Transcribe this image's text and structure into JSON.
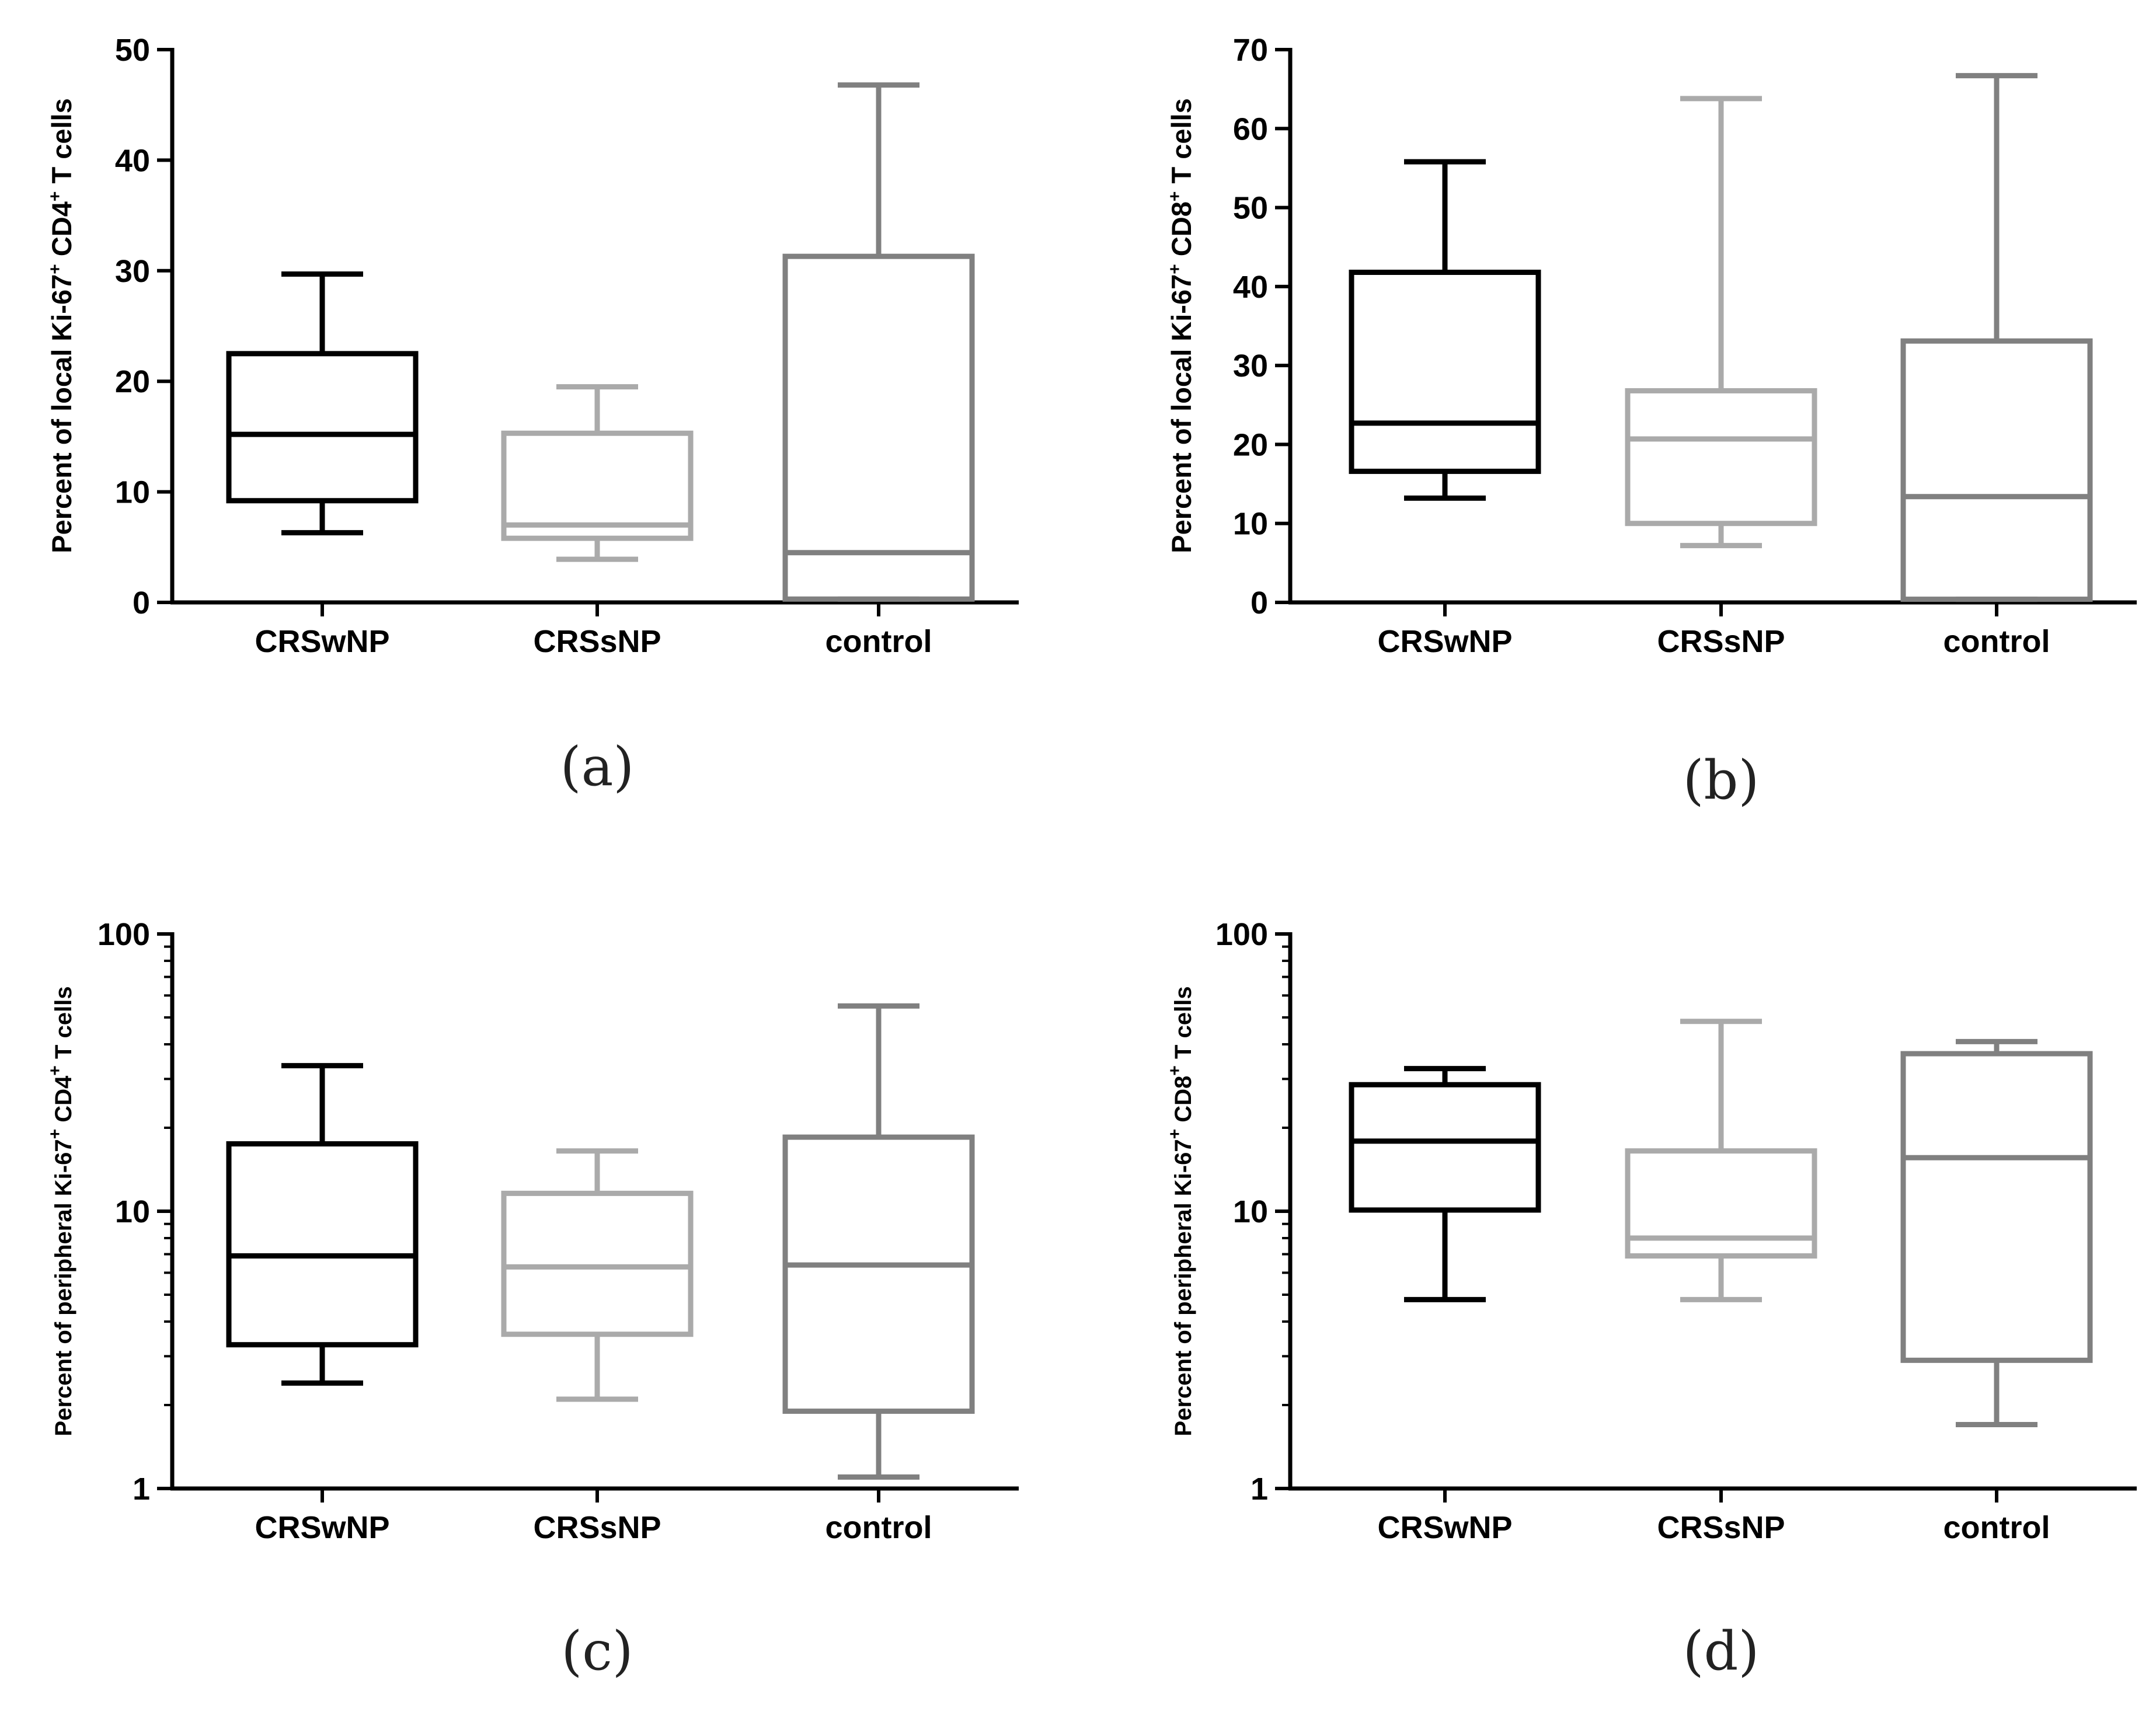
{
  "colors": {
    "CRSwNP": "#000000",
    "CRSsNP": "#aaaaaa",
    "control": "#808080",
    "axis": "#000000"
  },
  "chart_data": [
    {
      "type": "boxplot",
      "panel": "(a)",
      "ylabel_main": "Percent of local Ki-67",
      "ylabel_marker": "CD4",
      "ylabel_tail": "T cells",
      "scale": "linear",
      "ylim": [
        0,
        50
      ],
      "yticks": [
        0,
        10,
        20,
        30,
        40,
        50
      ],
      "ytick_labels": [
        "0",
        "10",
        "20",
        "30",
        "40",
        "50"
      ],
      "categories": [
        "CRSwNP",
        "CRSsNP",
        "control"
      ],
      "boxes": [
        {
          "group": "CRSwNP",
          "min": 6.3,
          "q1": 9.2,
          "median": 15.2,
          "q3": 22.5,
          "max": 29.7
        },
        {
          "group": "CRSsNP",
          "min": 3.9,
          "q1": 5.8,
          "median": 7.0,
          "q3": 15.3,
          "max": 19.5
        },
        {
          "group": "control",
          "min": 0.3,
          "q1": 0.3,
          "median": 4.5,
          "q3": 31.3,
          "max": 46.8
        }
      ]
    },
    {
      "type": "boxplot",
      "panel": "(b)",
      "ylabel_main": "Percent of local Ki-67",
      "ylabel_marker": "CD8",
      "ylabel_tail": "T cells",
      "scale": "linear",
      "ylim": [
        0,
        70
      ],
      "yticks": [
        0,
        10,
        20,
        30,
        40,
        50,
        60,
        70
      ],
      "ytick_labels": [
        "0",
        "10",
        "20",
        "30",
        "40",
        "50",
        "60",
        "70"
      ],
      "categories": [
        "CRSwNP",
        "CRSsNP",
        "control"
      ],
      "boxes": [
        {
          "group": "CRSwNP",
          "min": 13.2,
          "q1": 16.6,
          "median": 22.7,
          "q3": 41.8,
          "max": 55.8
        },
        {
          "group": "CRSsNP",
          "min": 7.2,
          "q1": 10.0,
          "median": 20.7,
          "q3": 26.8,
          "max": 63.8
        },
        {
          "group": "control",
          "min": 0.4,
          "q1": 0.4,
          "median": 13.4,
          "q3": 33.1,
          "max": 66.7
        }
      ]
    },
    {
      "type": "boxplot",
      "panel": "(c)",
      "ylabel_main": "Percent of peripheral Ki-67",
      "ylabel_marker": "CD4",
      "ylabel_tail": "T cells",
      "scale": "log",
      "ylim": [
        1,
        100
      ],
      "yticks": [
        1,
        10,
        100
      ],
      "ytick_labels": [
        "1",
        "10",
        "100"
      ],
      "categories": [
        "CRSwNP",
        "CRSsNP",
        "control"
      ],
      "boxes": [
        {
          "group": "CRSwNP",
          "min": 2.4,
          "q1": 3.3,
          "median": 6.9,
          "q3": 17.5,
          "max": 33.5
        },
        {
          "group": "CRSsNP",
          "min": 2.1,
          "q1": 3.6,
          "median": 6.3,
          "q3": 11.6,
          "max": 16.5
        },
        {
          "group": "control",
          "min": 1.1,
          "q1": 1.9,
          "median": 6.4,
          "q3": 18.5,
          "max": 55.0
        }
      ]
    },
    {
      "type": "boxplot",
      "panel": "(d)",
      "ylabel_main": "Percent of peripheral Ki-67",
      "ylabel_marker": "CD8",
      "ylabel_tail": "T cells",
      "scale": "log",
      "ylim": [
        1,
        100
      ],
      "yticks": [
        1,
        10,
        100
      ],
      "ytick_labels": [
        "1",
        "10",
        "100"
      ],
      "categories": [
        "CRSwNP",
        "CRSsNP",
        "control"
      ],
      "boxes": [
        {
          "group": "CRSwNP",
          "min": 4.8,
          "q1": 10.1,
          "median": 17.9,
          "q3": 28.6,
          "max": 32.7
        },
        {
          "group": "CRSsNP",
          "min": 4.8,
          "q1": 6.9,
          "median": 8.0,
          "q3": 16.5,
          "max": 48.4
        },
        {
          "group": "control",
          "min": 1.7,
          "q1": 2.9,
          "median": 15.6,
          "q3": 37.0,
          "max": 40.9
        }
      ]
    }
  ]
}
